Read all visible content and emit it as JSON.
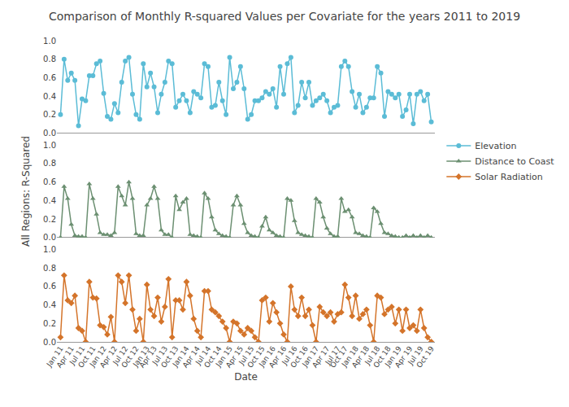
{
  "chart_data": {
    "type": "line",
    "title": "Comparison of Monthly R-squared Values per Covariate for the years 2011 to 2019",
    "x_label": "Date",
    "y_label": "All Regions: R-Squared",
    "categories": [
      "Jan 11",
      null,
      null,
      "Apr 11",
      null,
      null,
      "Jul 11",
      null,
      null,
      "Oct 11",
      null,
      null,
      "Jan 12",
      null,
      null,
      "Apr 12",
      null,
      null,
      "Jul 12",
      null,
      null,
      "Oct 12",
      null,
      null,
      "Jan 13",
      null,
      "Apr 13",
      null,
      null,
      "Jul 13",
      null,
      null,
      "Oct 13",
      null,
      null,
      "Jan 14",
      null,
      null,
      "Apr 14",
      null,
      null,
      "Jul 14",
      null,
      null,
      "Oct 14",
      null,
      null,
      "Jan 15",
      null,
      null,
      "Apr 15",
      null,
      null,
      "Jul 15",
      null,
      null,
      "Oct 15",
      null,
      null,
      "Jan 16",
      null,
      null,
      "Apr 16",
      null,
      null,
      "Jul 16",
      null,
      null,
      "Oct 16",
      null,
      null,
      "Jan 17",
      null,
      null,
      "Apr 17",
      null,
      null,
      "Jul 17",
      null,
      "Oct 17",
      null,
      null,
      "Jan 18",
      null,
      null,
      "Apr 18",
      null,
      null,
      "Jul 18",
      null,
      null,
      "Oct 18",
      null,
      null,
      "Jan 19",
      null,
      null,
      "Apr 19",
      null,
      null,
      "Jul 19",
      null,
      null,
      "Oct 19"
    ],
    "series": [
      {
        "name": "Elevation",
        "color": "#5bbcd6",
        "marker": "circle",
        "values": [
          0.2,
          0.8,
          0.57,
          0.65,
          0.57,
          0.08,
          0.37,
          0.35,
          0.62,
          0.62,
          0.75,
          0.78,
          0.43,
          0.18,
          0.15,
          0.32,
          0.22,
          0.55,
          0.78,
          0.82,
          0.42,
          0.2,
          0.15,
          0.75,
          0.5,
          0.65,
          0.5,
          0.22,
          0.42,
          0.55,
          0.78,
          0.75,
          0.28,
          0.35,
          0.42,
          0.35,
          0.22,
          0.45,
          0.42,
          0.38,
          0.75,
          0.72,
          0.28,
          0.3,
          0.55,
          0.35,
          0.2,
          0.82,
          0.48,
          0.55,
          0.72,
          0.48,
          0.15,
          0.2,
          0.35,
          0.35,
          0.38,
          0.45,
          0.42,
          0.48,
          0.28,
          0.72,
          0.42,
          0.75,
          0.82,
          0.22,
          0.3,
          0.55,
          0.38,
          0.55,
          0.3,
          0.35,
          0.38,
          0.42,
          0.35,
          0.22,
          0.28,
          0.3,
          0.72,
          0.78,
          0.72,
          0.45,
          0.28,
          0.42,
          0.22,
          0.28,
          0.38,
          0.38,
          0.72,
          0.65,
          0.18,
          0.45,
          0.42,
          0.38,
          0.42,
          0.18,
          0.25,
          0.42,
          0.1,
          0.42,
          0.45,
          0.35,
          0.42,
          0.12
        ]
      },
      {
        "name": "Distance to Coast",
        "color": "#6b8f71",
        "marker": "triangle-up",
        "values": [
          0.0,
          0.55,
          0.42,
          0.14,
          0.02,
          0.01,
          0.01,
          0.0,
          0.58,
          0.42,
          0.25,
          0.05,
          0.03,
          0.03,
          0.02,
          0.05,
          0.55,
          0.45,
          0.35,
          0.6,
          0.42,
          0.04,
          0.02,
          0.02,
          0.35,
          0.42,
          0.55,
          0.42,
          0.08,
          0.03,
          0.03,
          0.0,
          0.45,
          0.3,
          0.38,
          0.42,
          0.03,
          0.02,
          0.01,
          0.0,
          0.48,
          0.42,
          0.22,
          0.08,
          0.04,
          0.02,
          0.01,
          0.0,
          0.35,
          0.45,
          0.35,
          0.15,
          0.05,
          0.02,
          0.01,
          0.0,
          0.12,
          0.22,
          0.08,
          0.05,
          0.02,
          0.01,
          0.0,
          0.42,
          0.4,
          0.18,
          0.05,
          0.03,
          0.02,
          0.01,
          0.0,
          0.42,
          0.38,
          0.22,
          0.1,
          0.04,
          0.01,
          0.01,
          0.42,
          0.28,
          0.3,
          0.22,
          0.05,
          0.04,
          0.02,
          0.01,
          0.0,
          0.32,
          0.28,
          0.15,
          0.05,
          0.04,
          0.02,
          0.01,
          0.0,
          0.0,
          0.02,
          0.0,
          0.02,
          0.0,
          0.02,
          0.0,
          0.02,
          0.0
        ]
      },
      {
        "name": "Solar Radiation",
        "color": "#d4742a",
        "marker": "diamond",
        "values": [
          0.05,
          0.72,
          0.45,
          0.42,
          0.5,
          0.15,
          0.12,
          0.0,
          0.65,
          0.48,
          0.47,
          0.18,
          0.16,
          0.08,
          0.27,
          0.0,
          0.72,
          0.65,
          0.42,
          0.72,
          0.35,
          0.12,
          0.25,
          0.0,
          0.62,
          0.35,
          0.28,
          0.48,
          0.22,
          0.38,
          0.68,
          0.05,
          0.45,
          0.45,
          0.35,
          0.65,
          0.5,
          0.25,
          0.12,
          0.05,
          0.55,
          0.55,
          0.35,
          0.32,
          0.28,
          0.22,
          0.15,
          0.0,
          0.22,
          0.2,
          0.12,
          0.08,
          0.15,
          0.12,
          0.05,
          0.0,
          0.45,
          0.48,
          0.22,
          0.42,
          0.32,
          0.2,
          0.08,
          0.0,
          0.6,
          0.35,
          0.28,
          0.48,
          0.28,
          0.35,
          0.18,
          0.0,
          0.38,
          0.32,
          0.28,
          0.32,
          0.22,
          0.3,
          0.32,
          0.62,
          0.48,
          0.28,
          0.5,
          0.25,
          0.3,
          0.35,
          0.18,
          0.0,
          0.5,
          0.48,
          0.3,
          0.35,
          0.38,
          0.2,
          0.35,
          0.12,
          0.35,
          0.15,
          0.18,
          0.12,
          0.35,
          0.15,
          0.05,
          0.0
        ]
      }
    ],
    "ylim": [
      0,
      1
    ],
    "yticks": [
      {
        "value": 0,
        "label": "0.0"
      },
      0.2,
      0.4,
      0.6,
      0.8,
      {
        "value": 1,
        "label": "1.0"
      }
    ],
    "grid": false,
    "legend": "right"
  }
}
